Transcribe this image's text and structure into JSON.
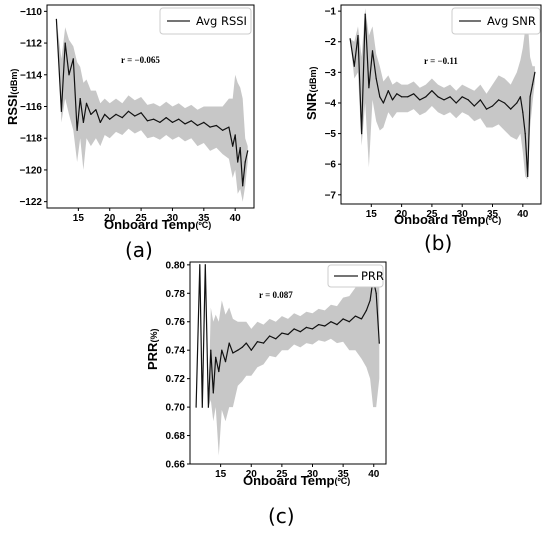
{
  "chart_data": [
    {
      "panel": "a",
      "type": "line",
      "panel_label": "(a)",
      "xlabel": "Onboard Temp",
      "xlabel_unit": "(ºC)",
      "ylabel": "RSSI",
      "ylabel_unit": "(dBm)",
      "xlim": [
        10,
        43
      ],
      "ylim": [
        -122.4,
        -109.6
      ],
      "xticks": [
        15,
        20,
        25,
        30,
        35,
        40
      ],
      "yticks": [
        -110,
        -112,
        -114,
        -116,
        -118,
        -120,
        -122
      ],
      "legend": {
        "label": "Avg RSSI",
        "position": "top-right"
      },
      "annotation": {
        "text": "r = −0.065",
        "x": 24.5,
        "y": -112.6
      },
      "series": [
        {
          "name": "Avg RSSI",
          "x": [
            11.5,
            12.3,
            12.9,
            13.5,
            14.2,
            14.8,
            15.3,
            15.8,
            16.3,
            17.0,
            17.8,
            18.5,
            19.2,
            20.0,
            21.0,
            22.0,
            23.0,
            24.0,
            25.0,
            26.0,
            27.0,
            28.0,
            29.0,
            30.0,
            31.0,
            32.0,
            33.0,
            34.0,
            35.0,
            36.0,
            37.0,
            38.0,
            39.0,
            39.6,
            40.0,
            40.4,
            40.8,
            41.2,
            41.6,
            42.0
          ],
          "y": [
            -110.5,
            -116.3,
            -112.0,
            -114.0,
            -113.0,
            -117.5,
            -115.5,
            -117.0,
            -115.8,
            -116.5,
            -116.2,
            -117.0,
            -116.5,
            -116.8,
            -116.5,
            -116.7,
            -116.3,
            -116.6,
            -116.4,
            -116.9,
            -116.8,
            -117.0,
            -116.7,
            -117.0,
            -116.8,
            -117.1,
            -116.9,
            -117.2,
            -117.0,
            -117.3,
            -117.2,
            -117.5,
            -117.3,
            -118.5,
            -117.8,
            -119.5,
            -118.6,
            -121.0,
            -119.5,
            -118.8
          ],
          "band": {
            "upper": [
              -110.5,
              -113.0,
              -111.0,
              -111.8,
              -112.2,
              -113.2,
              -113.5,
              -114.5,
              -114.3,
              -115.0,
              -115.0,
              -115.8,
              -115.5,
              -115.8,
              -115.5,
              -115.8,
              -115.3,
              -115.6,
              -115.4,
              -115.9,
              -115.8,
              -116.0,
              -115.7,
              -116.0,
              -115.8,
              -116.1,
              -115.9,
              -116.2,
              -116.0,
              -116.0,
              -116.0,
              -116.0,
              -115.5,
              -115.5,
              -114.0,
              -114.5,
              -114.8,
              -115.5,
              -118.0,
              -118.5
            ],
            "lower": [
              -110.5,
              -117.0,
              -115.5,
              -116.5,
              -117.5,
              -119.5,
              -118.0,
              -120.0,
              -118.0,
              -118.5,
              -118.0,
              -118.5,
              -117.8,
              -118.0,
              -117.6,
              -117.8,
              -117.4,
              -117.7,
              -117.5,
              -118.0,
              -117.9,
              -118.1,
              -117.8,
              -118.1,
              -117.9,
              -118.2,
              -118.0,
              -118.5,
              -118.3,
              -118.8,
              -118.6,
              -119.0,
              -119.3,
              -120.5,
              -120.0,
              -121.5,
              -121.2,
              -122.0,
              -121.0,
              -119.5
            ]
          }
        }
      ]
    },
    {
      "panel": "b",
      "type": "line",
      "panel_label": "(b)",
      "xlabel": "Onboard Temp",
      "xlabel_unit": "(ºC)",
      "ylabel": "SNR",
      "ylabel_unit": "(dBm)",
      "xlim": [
        10,
        43
      ],
      "ylim": [
        -7.3,
        -0.8
      ],
      "xticks": [
        15,
        20,
        25,
        30,
        35,
        40
      ],
      "yticks": [
        -1,
        -2,
        -3,
        -4,
        -5,
        -6,
        -7
      ],
      "legend": {
        "label": "Avg SNR",
        "position": "top-right"
      },
      "annotation": {
        "text": "r = −0.11",
        "x": 25.5,
        "y": -2.0
      },
      "series": [
        {
          "name": "Avg SNR",
          "x": [
            11.5,
            12.2,
            12.8,
            13.4,
            14.0,
            14.6,
            15.2,
            15.8,
            16.4,
            17.0,
            17.8,
            18.5,
            19.2,
            20.0,
            21.0,
            22.0,
            23.0,
            24.0,
            25.0,
            26.0,
            27.0,
            28.0,
            29.0,
            30.0,
            31.0,
            32.0,
            33.0,
            34.0,
            35.0,
            36.0,
            37.0,
            38.0,
            39.0,
            39.6,
            40.0,
            40.4,
            40.8,
            41.2,
            41.6,
            42.0
          ],
          "y": [
            -1.9,
            -2.8,
            -1.8,
            -5.0,
            -1.1,
            -3.5,
            -2.3,
            -3.2,
            -3.8,
            -4.0,
            -3.6,
            -3.9,
            -3.7,
            -3.8,
            -3.8,
            -3.7,
            -3.9,
            -3.8,
            -3.6,
            -3.8,
            -3.9,
            -3.8,
            -4.0,
            -3.8,
            -3.9,
            -4.1,
            -3.9,
            -4.2,
            -4.1,
            -3.9,
            -4.0,
            -4.2,
            -4.0,
            -3.8,
            -4.3,
            -5.0,
            -6.4,
            -3.8,
            -3.4,
            -3.0
          ],
          "band": {
            "upper": [
              -1.9,
              -2.0,
              -1.5,
              -2.5,
              -0.9,
              -1.8,
              -1.5,
              -2.4,
              -2.8,
              -3.3,
              -3.1,
              -3.4,
              -3.3,
              -3.4,
              -3.4,
              -3.3,
              -3.5,
              -3.4,
              -3.2,
              -3.4,
              -3.5,
              -3.4,
              -3.6,
              -3.4,
              -3.5,
              -3.6,
              -3.4,
              -3.7,
              -3.4,
              -3.1,
              -3.2,
              -3.4,
              -3.0,
              -2.6,
              -2.2,
              -1.6,
              -1.3,
              -2.5,
              -2.8,
              -2.8
            ],
            "lower": [
              -1.9,
              -3.2,
              -3.0,
              -5.4,
              -4.0,
              -6.1,
              -3.9,
              -4.6,
              -4.9,
              -4.8,
              -4.3,
              -4.5,
              -4.3,
              -4.3,
              -4.3,
              -4.2,
              -4.4,
              -4.3,
              -4.1,
              -4.3,
              -4.4,
              -4.3,
              -4.5,
              -4.3,
              -4.4,
              -4.6,
              -4.5,
              -4.8,
              -4.8,
              -4.7,
              -4.9,
              -5.1,
              -5.2,
              -5.0,
              -5.6,
              -6.4,
              -6.5,
              -4.8,
              -4.0,
              -3.3
            ]
          }
        }
      ]
    },
    {
      "panel": "c",
      "type": "line",
      "panel_label": "(c)",
      "xlabel": "Onboard Temp",
      "xlabel_unit": "(ºC)",
      "ylabel": "PRR",
      "ylabel_unit": "(%)",
      "xlim": [
        10,
        42
      ],
      "ylim": [
        0.66,
        0.802
      ],
      "xticks": [
        15,
        20,
        25,
        30,
        35,
        40
      ],
      "yticks": [
        0.8,
        0.78,
        0.76,
        0.74,
        0.72,
        0.7,
        0.68,
        0.66
      ],
      "legend": {
        "label": "PRR",
        "position": "top-right"
      },
      "annotation": {
        "text": "r = 0.087",
        "x": 24.5,
        "y": 0.786
      },
      "series": [
        {
          "name": "PRR",
          "x": [
            11.0,
            11.6,
            12.0,
            12.5,
            13.0,
            13.4,
            13.8,
            14.2,
            14.7,
            15.2,
            15.8,
            16.4,
            17.0,
            17.8,
            18.5,
            19.2,
            20.0,
            21.0,
            22.0,
            23.0,
            24.0,
            25.0,
            26.0,
            27.0,
            28.0,
            29.0,
            30.0,
            31.0,
            32.0,
            33.0,
            34.0,
            35.0,
            36.0,
            37.0,
            38.0,
            38.8,
            39.4,
            39.9,
            40.4,
            40.9
          ],
          "y": [
            0.7,
            0.8,
            0.7,
            0.8,
            0.7,
            0.74,
            0.71,
            0.735,
            0.725,
            0.74,
            0.732,
            0.745,
            0.738,
            0.74,
            0.742,
            0.745,
            0.74,
            0.746,
            0.745,
            0.75,
            0.748,
            0.752,
            0.751,
            0.755,
            0.753,
            0.756,
            0.755,
            0.758,
            0.757,
            0.76,
            0.758,
            0.762,
            0.76,
            0.764,
            0.762,
            0.768,
            0.775,
            0.79,
            0.78,
            0.745
          ],
          "band": {
            "upper": [
              0.7,
              0.8,
              0.7,
              0.8,
              0.7,
              0.77,
              0.76,
              0.765,
              0.76,
              0.775,
              0.765,
              0.77,
              0.762,
              0.76,
              0.76,
              0.76,
              0.755,
              0.76,
              0.758,
              0.762,
              0.76,
              0.764,
              0.762,
              0.766,
              0.764,
              0.767,
              0.766,
              0.769,
              0.768,
              0.772,
              0.771,
              0.777,
              0.778,
              0.784,
              0.786,
              0.795,
              0.8,
              0.8,
              0.8,
              0.795
            ],
            "lower": [
              0.7,
              0.8,
              0.7,
              0.8,
              0.7,
              0.705,
              0.69,
              0.7,
              0.666,
              0.698,
              0.69,
              0.7,
              0.7,
              0.715,
              0.718,
              0.722,
              0.722,
              0.728,
              0.73,
              0.736,
              0.735,
              0.74,
              0.74,
              0.744,
              0.742,
              0.745,
              0.744,
              0.747,
              0.746,
              0.748,
              0.745,
              0.746,
              0.74,
              0.74,
              0.734,
              0.728,
              0.72,
              0.7,
              0.7,
              0.72
            ]
          }
        }
      ]
    }
  ]
}
